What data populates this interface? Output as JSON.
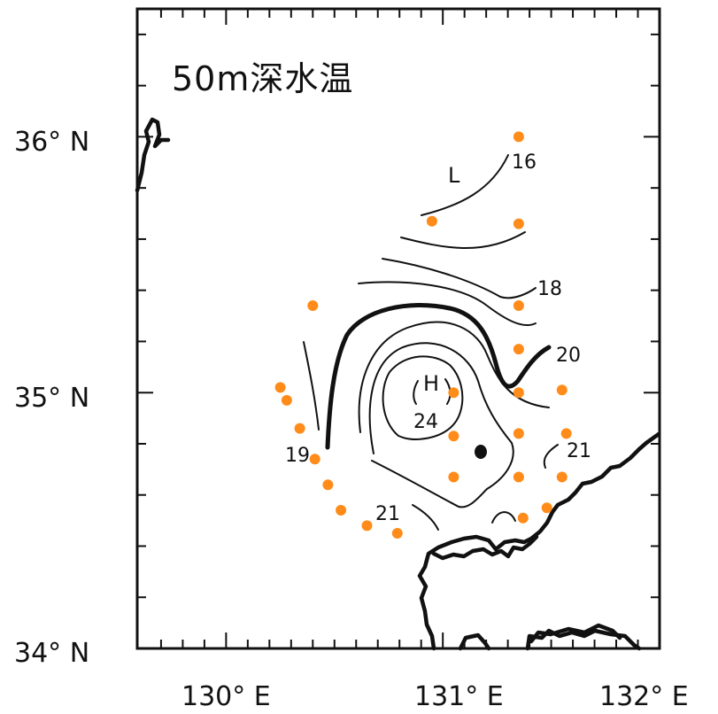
{
  "map": {
    "title": "50m深水温",
    "colors": {
      "station": "#ff8c1a",
      "line": "#111111",
      "background": "#ffffff"
    },
    "lat_labels": [
      "36°N",
      "35°N",
      "34°N"
    ],
    "lon_labels": [
      "130°E",
      "131°E",
      "132°E"
    ],
    "lat_ticks": [
      {
        "text": "36° N",
        "lat": 36
      },
      {
        "text": "35° N",
        "lat": 35
      },
      {
        "text": "34° N",
        "lat": 34
      }
    ],
    "lon_ticks": [
      {
        "text": "130° E",
        "lon": 130
      },
      {
        "text": "131° E",
        "lon": 131
      },
      {
        "text": "132° E",
        "lon": 132
      }
    ],
    "contour_labels": [
      "16",
      "18",
      "20",
      "19",
      "21",
      "21",
      "24"
    ],
    "markers": {
      "low": "L",
      "high": "H"
    },
    "contour_interval_note": "isotherms at 1°C, 20°C line bold",
    "stations": [
      {
        "lon": 131.35,
        "lat": 36.0
      },
      {
        "lon": 130.95,
        "lat": 35.67
      },
      {
        "lon": 131.35,
        "lat": 35.66
      },
      {
        "lon": 130.4,
        "lat": 35.34
      },
      {
        "lon": 131.35,
        "lat": 35.34
      },
      {
        "lon": 131.35,
        "lat": 35.17
      },
      {
        "lon": 130.25,
        "lat": 35.02
      },
      {
        "lon": 130.28,
        "lat": 34.97
      },
      {
        "lon": 131.05,
        "lat": 35.0
      },
      {
        "lon": 131.35,
        "lat": 35.0
      },
      {
        "lon": 131.55,
        "lat": 35.01
      },
      {
        "lon": 130.34,
        "lat": 34.86
      },
      {
        "lon": 131.05,
        "lat": 34.83
      },
      {
        "lon": 131.35,
        "lat": 34.84
      },
      {
        "lon": 131.57,
        "lat": 34.84
      },
      {
        "lon": 130.41,
        "lat": 34.74
      },
      {
        "lon": 131.05,
        "lat": 34.67
      },
      {
        "lon": 131.35,
        "lat": 34.67
      },
      {
        "lon": 131.55,
        "lat": 34.67
      },
      {
        "lon": 130.47,
        "lat": 34.64
      },
      {
        "lon": 130.53,
        "lat": 34.54
      },
      {
        "lon": 131.37,
        "lat": 34.51
      },
      {
        "lon": 131.48,
        "lat": 34.55
      },
      {
        "lon": 130.65,
        "lat": 34.48
      },
      {
        "lon": 130.79,
        "lat": 34.45
      }
    ]
  }
}
